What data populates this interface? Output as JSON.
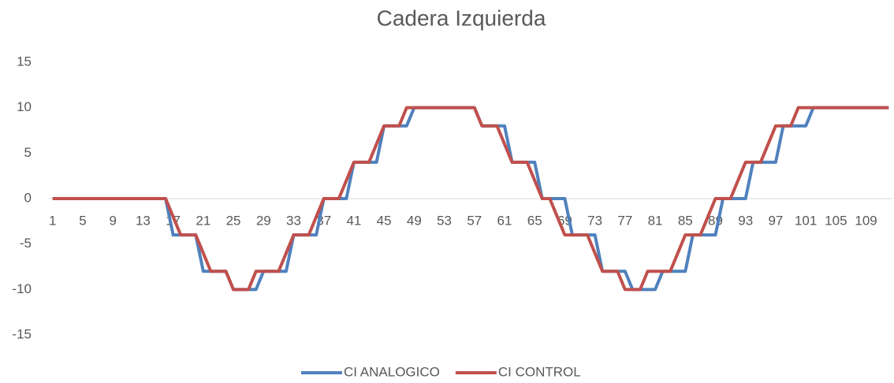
{
  "chart_data": {
    "type": "line",
    "title": "Cadera Izquierda",
    "categories": [
      1,
      null,
      null,
      null,
      5,
      null,
      null,
      null,
      9,
      null,
      null,
      null,
      13,
      null,
      null,
      null,
      17,
      null,
      null,
      null,
      21,
      null,
      null,
      null,
      25,
      null,
      null,
      null,
      29,
      null,
      null,
      null,
      33,
      null,
      null,
      null,
      37,
      null,
      null,
      null,
      41,
      null,
      null,
      null,
      45,
      null,
      null,
      null,
      49,
      null,
      null,
      null,
      53,
      null,
      null,
      null,
      57,
      null,
      null,
      null,
      61,
      null,
      null,
      null,
      65,
      null,
      null,
      null,
      69,
      null,
      null,
      null,
      73,
      null,
      null,
      null,
      77,
      null,
      null,
      null,
      81,
      null,
      null,
      null,
      85,
      null,
      null,
      null,
      89,
      null,
      null,
      null,
      93,
      null,
      null,
      null,
      97,
      null,
      null,
      null,
      101,
      null,
      null,
      null,
      105,
      null,
      null,
      null,
      109,
      null,
      null,
      null
    ],
    "series": [
      {
        "name": "CI ANALOGICO",
        "color": "#4f81bd",
        "values": [
          0,
          0,
          0,
          0,
          0,
          0,
          0,
          0,
          0,
          0,
          0,
          0,
          0,
          0,
          0,
          0,
          -4,
          -4,
          -4,
          -4,
          -8,
          -8,
          -8,
          -8,
          -10,
          -10,
          -10,
          -10,
          -8,
          -8,
          -8,
          -8,
          -4,
          -4,
          -4,
          -4,
          0,
          0,
          0,
          0,
          4,
          4,
          4,
          4,
          8,
          8,
          8,
          8,
          10,
          10,
          10,
          10,
          10,
          10,
          10,
          10,
          10,
          8,
          8,
          8,
          8,
          4,
          4,
          4,
          4,
          0,
          0,
          0,
          0,
          -4,
          -4,
          -4,
          -4,
          -8,
          -8,
          -8,
          -8,
          -10,
          -10,
          -10,
          -10,
          -8,
          -8,
          -8,
          -8,
          -4,
          -4,
          -4,
          -4,
          0,
          0,
          0,
          0,
          4,
          4,
          4,
          4,
          8,
          8,
          8,
          8,
          10,
          10,
          10,
          10,
          10,
          10,
          10,
          10,
          10,
          10,
          10
        ]
      },
      {
        "name": "CI CONTROL",
        "color": "#c0504d",
        "values": [
          0,
          0,
          0,
          0,
          0,
          0,
          0,
          0,
          0,
          0,
          0,
          0,
          0,
          0,
          0,
          0,
          -2,
          -4,
          -4,
          -4,
          -6,
          -8,
          -8,
          -8,
          -10,
          -10,
          -10,
          -8,
          -8,
          -8,
          -8,
          -6,
          -4,
          -4,
          -4,
          -2,
          0,
          0,
          0,
          2,
          4,
          4,
          4,
          6,
          8,
          8,
          8,
          10,
          10,
          10,
          10,
          10,
          10,
          10,
          10,
          10,
          10,
          8,
          8,
          8,
          6,
          4,
          4,
          4,
          2,
          0,
          0,
          -2,
          -4,
          -4,
          -4,
          -4,
          -6,
          -8,
          -8,
          -8,
          -10,
          -10,
          -10,
          -8,
          -8,
          -8,
          -8,
          -6,
          -4,
          -4,
          -4,
          -2,
          0,
          0,
          0,
          2,
          4,
          4,
          4,
          6,
          8,
          8,
          8,
          10,
          10,
          10,
          10,
          10,
          10,
          10,
          10,
          10,
          10,
          10,
          10,
          10
        ]
      }
    ],
    "ylim": [
      -15,
      15
    ],
    "yticks": [
      -15,
      -10,
      -5,
      0,
      5,
      10,
      15
    ],
    "grid": false,
    "legend": "bottom"
  }
}
